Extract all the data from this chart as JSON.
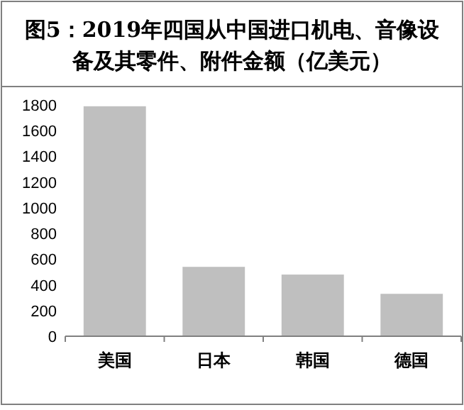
{
  "chart_data": {
    "type": "bar",
    "title": "图5：2019年四国从中国进口机电、音像设备及其零件、附件金额（亿美元）",
    "categories": [
      "美国",
      "日本",
      "韩国",
      "德国"
    ],
    "values": [
      1790,
      540,
      480,
      330
    ],
    "color": "#bfbfbf",
    "ylim": [
      0,
      1800
    ],
    "yticks": [
      0,
      200,
      400,
      600,
      800,
      1000,
      1200,
      1400,
      1600,
      1800
    ]
  }
}
